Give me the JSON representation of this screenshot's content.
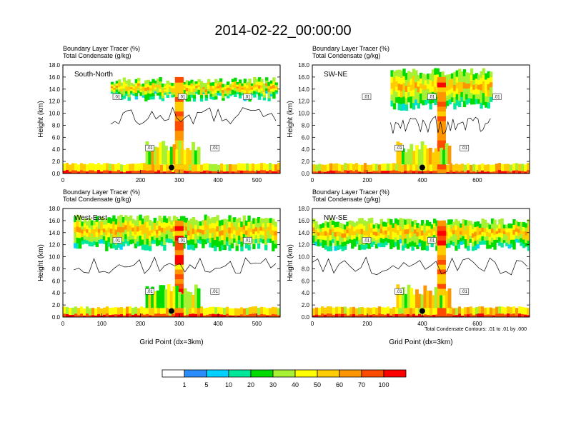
{
  "main_title": "2014-02-22_00:00:00",
  "colorbar": {
    "labels": [
      "1",
      "5",
      "10",
      "20",
      "30",
      "40",
      "50",
      "60",
      "70",
      "100"
    ],
    "colors": [
      "#ffffff",
      "#2b8cff",
      "#00d2ff",
      "#00e89a",
      "#00dc00",
      "#a8f032",
      "#ffff00",
      "#ffcc00",
      "#ff9600",
      "#ff4b00",
      "#ff0000"
    ]
  },
  "footnote": "Total Condensate Contours: .01 to .01 by .000",
  "chart_data": [
    {
      "type": "heatmap",
      "panel_label": "South-North",
      "title_line1": "Boundary Layer Tracer   (%)",
      "title_line2": "Total Condensate   (g/kg)",
      "ylabel": "Height (km)",
      "xlabel": "",
      "xlim": [
        0,
        560
      ],
      "ylim": [
        0,
        18
      ],
      "xticks": [
        "0",
        "200",
        "300",
        "400",
        "500"
      ],
      "yticks": [
        "0.0",
        "2.0",
        "4.0",
        "6.0",
        "8.0",
        "10.0",
        "12.0",
        "14.0",
        "16.0",
        "18.0"
      ],
      "contour_labels": [
        ".01",
        ".01",
        ".01",
        ".01",
        ".01"
      ],
      "marker_x": 280
    },
    {
      "type": "heatmap",
      "panel_label": "SW-NE",
      "title_line1": "Boundary Layer Tracer   (%)",
      "title_line2": "Total Condensate   (g/kg)",
      "ylabel": "Height (km)",
      "xlabel": "",
      "xlim": [
        0,
        790
      ],
      "ylim": [
        0,
        18
      ],
      "xticks": [
        "0",
        "200",
        "400",
        "600"
      ],
      "yticks": [
        "0.0",
        "2.0",
        "4.0",
        "6.0",
        "8.0",
        "10.0",
        "12.0",
        "14.0",
        "16.0",
        "18.0"
      ],
      "contour_labels": [
        ".01",
        ".01",
        ".01",
        ".01",
        ".01"
      ],
      "marker_x": 400
    },
    {
      "type": "heatmap",
      "panel_label": "West-East",
      "title_line1": "Boundary Layer Tracer   (%)",
      "title_line2": "Total Condensate   (g/kg)",
      "ylabel": "Height (km)",
      "xlabel": "Grid Point (dx=3km)",
      "xlim": [
        0,
        560
      ],
      "ylim": [
        0,
        18
      ],
      "xticks": [
        "0",
        "100",
        "200",
        "300",
        "400",
        "500"
      ],
      "yticks": [
        "0.0",
        "2.0",
        "4.0",
        "6.0",
        "8.0",
        "10.0",
        "12.0",
        "14.0",
        "16.0",
        "18.0"
      ],
      "contour_labels": [
        ".01",
        ".01",
        ".01",
        ".01",
        ".01"
      ],
      "marker_x": 280
    },
    {
      "type": "heatmap",
      "panel_label": "NW-SE",
      "title_line1": "Boundary Layer Tracer   (%)",
      "title_line2": "Total Condensate   (g/kg)",
      "ylabel": "Height (km)",
      "xlabel": "Grid Point (dx=3km)",
      "xlim": [
        0,
        790
      ],
      "ylim": [
        0,
        18
      ],
      "xticks": [
        "0",
        "200",
        "400",
        "600"
      ],
      "yticks": [
        "0.0",
        "2.0",
        "4.0",
        "6.0",
        "8.0",
        "10.0",
        "12.0",
        "14.0",
        "16.0",
        "18.0"
      ],
      "contour_labels": [
        ".01",
        ".01",
        ".01",
        ".01"
      ],
      "marker_x": 400
    }
  ]
}
